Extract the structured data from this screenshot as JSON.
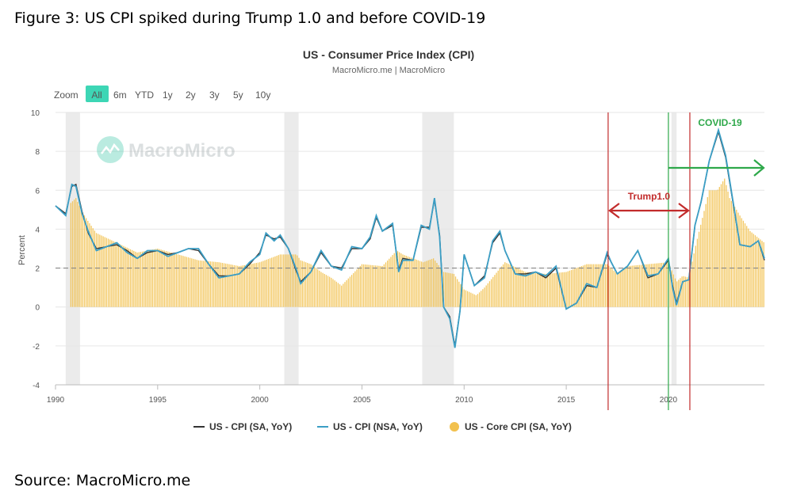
{
  "figure_title": "Figure 3: US CPI spiked during Trump 1.0 and before COVID-19",
  "source": "Source: MacroMicro.me",
  "watermark": "MacroMicro",
  "zoom": {
    "label": "Zoom",
    "options": [
      "All",
      "6m",
      "YTD",
      "1y",
      "2y",
      "3y",
      "5y",
      "10y"
    ],
    "selected": "All"
  },
  "annotations": {
    "trump": "Trump1.0",
    "covid": "COVID-19"
  },
  "colors": {
    "cpi_sa": "#333333",
    "cpi_nsa": "#3b9ec5",
    "core": "#f2c14e",
    "recession": "#ebebeb",
    "trump": "#c22b2b",
    "covid": "#2ea84a",
    "zoom_active": "#3dd6b5"
  },
  "chart_data": {
    "type": "line",
    "title": "US - Consumer Price Index (CPI)",
    "subtitle": "MacroMicro.me | MacroMicro",
    "xlabel": "",
    "ylabel": "Percent",
    "xlim": [
      1990,
      2024.7
    ],
    "ylim": [
      -4,
      10
    ],
    "x_ticks": [
      "1990",
      "1995",
      "2000",
      "2005",
      "2010",
      "2015",
      "2020"
    ],
    "y_ticks": [
      "-4",
      "-2",
      "0",
      "2",
      "4",
      "6",
      "8",
      "10"
    ],
    "reference_line": 2,
    "recession_shading": [
      [
        1990.5,
        1991.2
      ],
      [
        2001.2,
        2001.9
      ],
      [
        2007.95,
        2009.5
      ],
      [
        2020.15,
        2020.4
      ]
    ],
    "events": [
      {
        "name": "Trump1.0",
        "start": 2017.05,
        "end": 2021.05
      },
      {
        "name": "COVID-19",
        "start": 2020.0
      }
    ],
    "series": [
      {
        "name": "US - CPI (SA, YoY)",
        "type": "line",
        "x": [
          1990.0,
          1990.5,
          1990.8,
          1991.0,
          1991.3,
          1991.6,
          1992.0,
          1992.5,
          1993.0,
          1993.5,
          1994.0,
          1994.5,
          1995.0,
          1995.5,
          1996.0,
          1996.5,
          1997.0,
          1997.5,
          1998.0,
          1998.5,
          1999.0,
          1999.5,
          2000.0,
          2000.3,
          2000.7,
          2001.0,
          2001.4,
          2001.8,
          2002.0,
          2002.5,
          2003.0,
          2003.5,
          2004.0,
          2004.5,
          2005.0,
          2005.4,
          2005.7,
          2006.0,
          2006.5,
          2006.8,
          2007.0,
          2007.5,
          2007.9,
          2008.3,
          2008.55,
          2008.8,
          2009.0,
          2009.3,
          2009.55,
          2009.8,
          2010.0,
          2010.5,
          2011.0,
          2011.4,
          2011.75,
          2012.0,
          2012.5,
          2013.0,
          2013.5,
          2014.0,
          2014.5,
          2015.0,
          2015.5,
          2016.0,
          2016.5,
          2017.0,
          2017.2,
          2017.5,
          2018.0,
          2018.5,
          2019.0,
          2019.5,
          2020.0,
          2020.2,
          2020.4,
          2020.7,
          2021.0,
          2021.3,
          2021.6,
          2022.0,
          2022.45,
          2022.8,
          2023.0,
          2023.5,
          2024.0,
          2024.4,
          2024.7
        ],
        "y": [
          5.2,
          4.8,
          6.2,
          6.3,
          4.9,
          3.8,
          3.0,
          3.1,
          3.2,
          2.9,
          2.5,
          2.8,
          2.9,
          2.7,
          2.8,
          3.0,
          2.9,
          2.2,
          1.6,
          1.6,
          1.7,
          2.2,
          2.8,
          3.7,
          3.5,
          3.6,
          3.0,
          1.8,
          1.3,
          1.8,
          2.8,
          2.1,
          2.0,
          3.0,
          3.0,
          3.5,
          4.6,
          3.9,
          4.2,
          1.9,
          2.5,
          2.4,
          4.1,
          4.1,
          5.5,
          3.7,
          0.0,
          -0.5,
          -2.0,
          -0.2,
          2.7,
          1.1,
          1.6,
          3.3,
          3.8,
          2.9,
          1.7,
          1.7,
          1.8,
          1.5,
          2.0,
          -0.1,
          0.2,
          1.1,
          1.0,
          2.7,
          2.3,
          1.7,
          2.1,
          2.9,
          1.5,
          1.7,
          2.4,
          1.1,
          0.2,
          1.3,
          1.4,
          4.2,
          5.4,
          7.5,
          9.0,
          7.7,
          6.4,
          3.2,
          3.1,
          3.4,
          2.4
        ]
      },
      {
        "name": "US - CPI (NSA, YoY)",
        "type": "line",
        "x": [
          1990.0,
          1990.5,
          1990.8,
          1991.0,
          1991.3,
          1991.6,
          1992.0,
          1992.5,
          1993.0,
          1993.5,
          1994.0,
          1994.5,
          1995.0,
          1995.5,
          1996.0,
          1996.5,
          1997.0,
          1997.5,
          1998.0,
          1998.5,
          1999.0,
          1999.5,
          2000.0,
          2000.3,
          2000.7,
          2001.0,
          2001.4,
          2001.8,
          2002.0,
          2002.5,
          2003.0,
          2003.5,
          2004.0,
          2004.5,
          2005.0,
          2005.4,
          2005.7,
          2006.0,
          2006.5,
          2006.8,
          2007.0,
          2007.5,
          2007.9,
          2008.3,
          2008.55,
          2008.8,
          2009.0,
          2009.3,
          2009.55,
          2009.8,
          2010.0,
          2010.5,
          2011.0,
          2011.4,
          2011.75,
          2012.0,
          2012.5,
          2013.0,
          2013.5,
          2014.0,
          2014.5,
          2015.0,
          2015.5,
          2016.0,
          2016.5,
          2017.0,
          2017.2,
          2017.5,
          2018.0,
          2018.5,
          2019.0,
          2019.5,
          2020.0,
          2020.2,
          2020.4,
          2020.7,
          2021.0,
          2021.3,
          2021.6,
          2022.0,
          2022.45,
          2022.8,
          2023.0,
          2023.5,
          2024.0,
          2024.4,
          2024.7
        ],
        "y": [
          5.2,
          4.7,
          6.3,
          6.2,
          4.8,
          3.9,
          2.9,
          3.1,
          3.3,
          2.8,
          2.5,
          2.9,
          2.9,
          2.6,
          2.8,
          3.0,
          3.0,
          2.2,
          1.5,
          1.6,
          1.7,
          2.3,
          2.7,
          3.8,
          3.4,
          3.7,
          3.0,
          1.9,
          1.2,
          1.8,
          2.9,
          2.1,
          1.9,
          3.1,
          3.0,
          3.6,
          4.7,
          3.9,
          4.3,
          1.8,
          2.4,
          2.4,
          4.2,
          4.0,
          5.6,
          3.6,
          0.0,
          -0.6,
          -2.1,
          -0.2,
          2.7,
          1.1,
          1.5,
          3.4,
          3.9,
          2.9,
          1.7,
          1.6,
          1.8,
          1.6,
          2.1,
          -0.1,
          0.2,
          1.2,
          1.0,
          2.8,
          2.3,
          1.7,
          2.1,
          2.9,
          1.6,
          1.7,
          2.5,
          1.0,
          0.1,
          1.3,
          1.4,
          4.2,
          5.4,
          7.5,
          9.1,
          7.8,
          6.5,
          3.2,
          3.1,
          3.4,
          2.5
        ]
      },
      {
        "name": "US - Core CPI (SA, YoY)",
        "type": "bar",
        "x": [
          1990.0,
          1990.5,
          1991.0,
          1991.3,
          1991.6,
          1992.0,
          1993.0,
          1994.0,
          1995.0,
          1996.0,
          1997.0,
          1998.0,
          1999.0,
          2000.0,
          2001.0,
          2001.8,
          2002.0,
          2002.5,
          2003.0,
          2003.5,
          2004.0,
          2005.0,
          2006.0,
          2006.7,
          2007.0,
          2008.0,
          2008.5,
          2009.0,
          2009.5,
          2010.0,
          2010.6,
          2011.0,
          2012.0,
          2013.0,
          2014.0,
          2015.0,
          2016.0,
          2017.0,
          2017.5,
          2018.0,
          2019.0,
          2020.0,
          2020.4,
          2020.7,
          2021.0,
          2021.3,
          2021.6,
          2022.0,
          2022.4,
          2022.75,
          2023.0,
          2023.5,
          2024.0,
          2024.7
        ],
        "y": [
          0,
          5.1,
          5.6,
          4.9,
          4.4,
          3.8,
          3.3,
          2.8,
          3.0,
          2.7,
          2.4,
          2.3,
          2.1,
          2.3,
          2.7,
          2.7,
          2.4,
          2.2,
          1.8,
          1.5,
          1.1,
          2.2,
          2.1,
          2.9,
          2.7,
          2.3,
          2.5,
          1.8,
          1.7,
          0.9,
          0.6,
          1.0,
          2.3,
          1.8,
          1.7,
          1.8,
          2.2,
          2.2,
          1.7,
          2.1,
          2.2,
          2.3,
          1.3,
          1.6,
          1.5,
          3.0,
          4.3,
          6.0,
          6.0,
          6.6,
          5.6,
          4.7,
          3.9,
          3.3
        ]
      }
    ]
  }
}
